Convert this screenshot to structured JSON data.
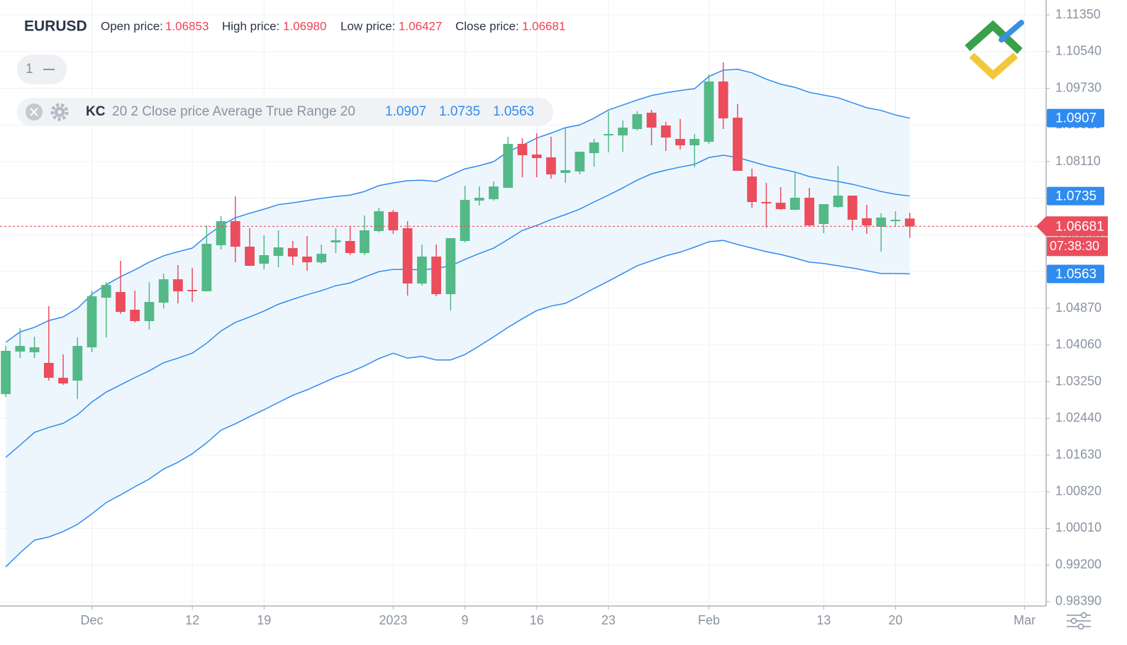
{
  "header": {
    "symbol": "EURUSD",
    "fields": [
      {
        "label": "Open price:",
        "value": "1.06853"
      },
      {
        "label": "High price:",
        "value": "1.06980"
      },
      {
        "label": "Low price:",
        "value": "1.06427"
      },
      {
        "label": "Close price:",
        "value": "1.06681"
      }
    ]
  },
  "indicator": {
    "pane": "1",
    "name": "KC",
    "params": "20 2 Close price Average True Range 20"
  },
  "chart_data": {
    "type": "candlestick",
    "up_color": "#53b987",
    "down_color": "#eb4d5c",
    "channel_color": "#2f8bf0",
    "band_color": "#eef6fd",
    "grid": true,
    "xlim": [
      -0.4,
      72.5
    ],
    "xticks": [
      {
        "value": 6,
        "label": "Dec"
      },
      {
        "value": 13,
        "label": "12"
      },
      {
        "value": 18,
        "label": "19"
      },
      {
        "value": 27,
        "label": "2023"
      },
      {
        "value": 32,
        "label": "9"
      },
      {
        "value": 37,
        "label": "16"
      },
      {
        "value": 42,
        "label": "23"
      },
      {
        "value": 49,
        "label": "Feb"
      },
      {
        "value": 57,
        "label": "13"
      },
      {
        "value": 62,
        "label": "20"
      },
      {
        "value": 71,
        "label": "Mar"
      }
    ],
    "ylim": [
      0.98296,
      1.11679
    ],
    "yticks": [
      {
        "value": 1.1135,
        "label": "1.11350"
      },
      {
        "value": 1.1054,
        "label": "1.10540"
      },
      {
        "value": 1.0973,
        "label": "1.09730"
      },
      {
        "value": 1.0892,
        "label": "1.08920"
      },
      {
        "value": 1.0811,
        "label": "1.08110"
      },
      {
        "value": 1.073,
        "label": "1.07300"
      },
      {
        "value": 1.0649,
        "label": "1.06490"
      },
      {
        "value": 1.0568,
        "label": "1.05680"
      },
      {
        "value": 1.0487,
        "label": "1.04870"
      },
      {
        "value": 1.0406,
        "label": "1.04060"
      },
      {
        "value": 1.0325,
        "label": "1.03250"
      },
      {
        "value": 1.0244,
        "label": "1.02440"
      },
      {
        "value": 1.0163,
        "label": "1.01630"
      },
      {
        "value": 1.0082,
        "label": "1.00820"
      },
      {
        "value": 1.0001,
        "label": "1.00010"
      },
      {
        "value": 0.992,
        "label": "0.99200"
      },
      {
        "value": 0.9839,
        "label": "0.98390"
      }
    ],
    "open": [
      1.02976,
      1.03915,
      1.039,
      1.03665,
      1.03336,
      1.03274,
      1.04009,
      1.05105,
      1.0523,
      1.04839,
      1.04588,
      1.04995,
      1.05512,
      1.05277,
      1.05246,
      1.06263,
      1.06795,
      1.06232,
      1.05856,
      1.06028,
      1.062,
      1.06013,
      1.05887,
      1.06326,
      1.06357,
      1.06091,
      1.06576,
      1.06999,
      1.06639,
      1.05418,
      1.06013,
      1.05183,
      1.06357,
      1.07249,
      1.0728,
      1.07531,
      1.08501,
      1.08267,
      1.08204,
      1.0786,
      1.07891,
      1.08298,
      1.08689,
      1.08689,
      1.0883,
      1.0919,
      1.08908,
      1.08611,
      1.0847,
      1.08548,
      1.09879,
      1.0908,
      1.07781,
      1.07218,
      1.07202,
      1.07046,
      1.07312,
      1.06733,
      1.07108,
      1.07359,
      1.06858,
      1.0667,
      1.06795,
      1.06853
    ],
    "high": [
      1.0404,
      1.04432,
      1.04244,
      1.04917,
      1.03853,
      1.04228,
      1.05261,
      1.05449,
      1.05919,
      1.05261,
      1.05449,
      1.05637,
      1.05825,
      1.05762,
      1.06701,
      1.06905,
      1.07343,
      1.06639,
      1.06482,
      1.06592,
      1.06357,
      1.06467,
      1.06279,
      1.06639,
      1.0667,
      1.0692,
      1.07093,
      1.07046,
      1.06795,
      1.06279,
      1.06279,
      1.0642,
      1.07578,
      1.07562,
      1.07672,
      1.08658,
      1.08627,
      1.08736,
      1.08658,
      1.08861,
      1.08329,
      1.08611,
      1.09221,
      1.09018,
      1.09221,
      1.09253,
      1.08987,
      1.09049,
      1.0872,
      1.10035,
      1.10301,
      1.09378,
      1.07954,
      1.0764,
      1.07547,
      1.07891,
      1.07531,
      1.07171,
      1.08016,
      1.07359,
      1.07155,
      1.06967,
      1.07014,
      1.0698
    ],
    "low": [
      1.02914,
      1.03774,
      1.03774,
      1.03274,
      1.0318,
      1.02867,
      1.039,
      1.04228,
      1.04745,
      1.04557,
      1.04401,
      1.0487,
      1.0498,
      1.05011,
      1.05246,
      1.06169,
      1.05887,
      1.05809,
      1.05731,
      1.05778,
      1.05825,
      1.057,
      1.05856,
      1.06091,
      1.06044,
      1.06044,
      1.06545,
      1.06514,
      1.05152,
      1.05371,
      1.05136,
      1.04823,
      1.06326,
      1.0714,
      1.07249,
      1.07531,
      1.07766,
      1.07766,
      1.07734,
      1.0764,
      1.07828,
      1.08,
      1.08314,
      1.08329,
      1.08799,
      1.0847,
      1.08345,
      1.08376,
      1.07985,
      1.08501,
      1.0883,
      1.07907,
      1.07093,
      1.06654,
      1.07046,
      1.07046,
      1.0667,
      1.06529,
      1.07093,
      1.06592,
      1.06514,
      1.06122,
      1.0667,
      1.06427
    ],
    "close": [
      1.03931,
      1.0404,
      1.04009,
      1.03336,
      1.03211,
      1.0404,
      1.05136,
      1.05387,
      1.04792,
      1.04588,
      1.05011,
      1.05512,
      1.05246,
      1.05246,
      1.06294,
      1.06795,
      1.06232,
      1.05809,
      1.06044,
      1.06216,
      1.06013,
      1.05887,
      1.06075,
      1.06373,
      1.06091,
      1.06592,
      1.07014,
      1.06592,
      1.05418,
      1.06013,
      1.05183,
      1.0642,
      1.07265,
      1.07312,
      1.07562,
      1.08501,
      1.08251,
      1.08188,
      1.07828,
      1.07922,
      1.08329,
      1.08533,
      1.0872,
      1.08861,
      1.09159,
      1.08861,
      1.08642,
      1.0847,
      1.08611,
      1.09879,
      1.09065,
      1.07907,
      1.07218,
      1.07187,
      1.07061,
      1.07312,
      1.06701,
      1.07171,
      1.07359,
      1.06827,
      1.06701,
      1.06874,
      1.06827,
      1.06681
    ],
    "channels": {
      "upper": [
        1.0412,
        1.0435,
        1.0445,
        1.046,
        1.0468,
        1.0487,
        1.0518,
        1.0539,
        1.0557,
        1.0572,
        1.0589,
        1.0603,
        1.0612,
        1.062,
        1.0647,
        1.067,
        1.0687,
        1.0697,
        1.0706,
        1.0716,
        1.072,
        1.0725,
        1.073,
        1.0734,
        1.0737,
        1.0745,
        1.0758,
        1.0764,
        1.0769,
        1.077,
        1.0767,
        1.0781,
        1.0795,
        1.0802,
        1.0811,
        1.0833,
        1.0847,
        1.0863,
        1.0874,
        1.0886,
        1.0892,
        1.0907,
        1.0925,
        1.0936,
        1.0947,
        1.0957,
        1.0963,
        1.0968,
        1.0972,
        1.0999,
        1.1013,
        1.1015,
        1.1007,
        1.0993,
        1.0982,
        1.0975,
        1.0964,
        1.0958,
        1.0952,
        1.0941,
        1.093,
        1.0924,
        1.0914,
        1.0907
      ],
      "middle": [
        1.0158,
        1.0185,
        1.0213,
        1.0224,
        1.0233,
        1.0252,
        1.028,
        1.0302,
        1.0318,
        1.0334,
        1.0349,
        1.0367,
        1.0377,
        1.0388,
        1.041,
        1.0437,
        1.0456,
        1.0468,
        1.0481,
        1.0496,
        1.0507,
        1.0517,
        1.0526,
        1.0537,
        1.0543,
        1.0556,
        1.0568,
        1.0573,
        1.0573,
        1.0572,
        1.0575,
        1.0581,
        1.0595,
        1.0608,
        1.062,
        1.0639,
        1.0659,
        1.067,
        1.0683,
        1.0694,
        1.0706,
        1.0722,
        1.0737,
        1.0753,
        1.077,
        1.0784,
        1.0792,
        1.0799,
        1.0805,
        1.082,
        1.0825,
        1.082,
        1.0811,
        1.0802,
        1.0795,
        1.0788,
        1.0778,
        1.0772,
        1.0767,
        1.0761,
        1.0753,
        1.0745,
        1.0739,
        1.0735
      ],
      "lower": [
        0.9916,
        0.9947,
        0.9975,
        0.9982,
        0.9994,
        1.001,
        1.0033,
        1.0058,
        1.0075,
        1.0093,
        1.011,
        1.0132,
        1.0147,
        1.0166,
        1.019,
        1.0218,
        1.0232,
        1.0248,
        1.0263,
        1.0279,
        1.0295,
        1.0307,
        1.0321,
        1.0335,
        1.0346,
        1.036,
        1.0376,
        1.0388,
        1.0377,
        1.0381,
        1.0373,
        1.0373,
        1.0385,
        1.0404,
        1.0424,
        1.0445,
        1.0464,
        1.0482,
        1.0492,
        1.0498,
        1.0514,
        1.0531,
        1.0547,
        1.0564,
        1.0581,
        1.0592,
        1.0603,
        1.0611,
        1.0622,
        1.0634,
        1.0637,
        1.0628,
        1.062,
        1.0612,
        1.0606,
        1.0598,
        1.0589,
        1.0586,
        1.0581,
        1.0576,
        1.057,
        1.0564,
        1.0564,
        1.0563
      ]
    },
    "countdown": "07:38:30"
  }
}
